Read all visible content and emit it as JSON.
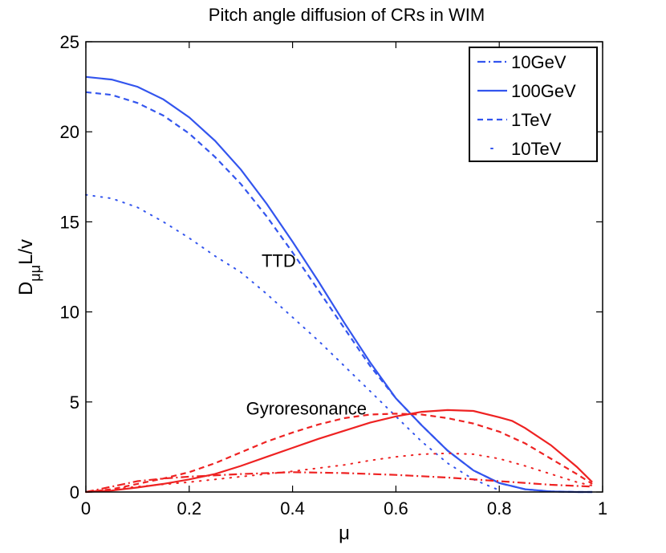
{
  "chart_data": {
    "type": "line",
    "title": "Pitch angle diffusion of CRs in WIM",
    "xlabel": "μ",
    "ylabel": {
      "main": "D",
      "subscript": "μμ",
      "suffix": "L/v"
    },
    "xlim": [
      0,
      1
    ],
    "ylim": [
      0,
      25
    ],
    "xticks": [
      0,
      0.2,
      0.4,
      0.6,
      0.8,
      1
    ],
    "yticks": [
      0,
      5,
      10,
      15,
      20,
      25
    ],
    "xtick_labels": [
      "0",
      "0.2",
      "0.4",
      "0.6",
      "0.8",
      "1"
    ],
    "ytick_labels": [
      "0",
      "5",
      "10",
      "15",
      "20",
      "25"
    ],
    "grid": false,
    "legend": {
      "position": "top-right",
      "entries": [
        {
          "label": "10GeV",
          "style": "dashdot"
        },
        {
          "label": "100GeV",
          "style": "solid"
        },
        {
          "label": "1TeV",
          "style": "dashed"
        },
        {
          "label": "10TeV",
          "style": "dotted"
        }
      ]
    },
    "annotations": [
      {
        "text": "TTD",
        "x": 0.34,
        "y": 12.5
      },
      {
        "text": "Gyroresonance",
        "x": 0.31,
        "y": 4.3
      }
    ],
    "colors": {
      "ttd": "#3355ee",
      "gyro": "#ee2222"
    },
    "series": [
      {
        "name": "TTD 100GeV",
        "group": "ttd",
        "style": "solid",
        "x": [
          0,
          0.05,
          0.1,
          0.15,
          0.2,
          0.25,
          0.3,
          0.35,
          0.4,
          0.45,
          0.5,
          0.55,
          0.6,
          0.65,
          0.7,
          0.75,
          0.8,
          0.85,
          0.9,
          0.95,
          0.98
        ],
        "y": [
          23.05,
          22.9,
          22.5,
          21.8,
          20.8,
          19.5,
          17.9,
          16.0,
          13.9,
          11.7,
          9.4,
          7.2,
          5.2,
          3.7,
          2.3,
          1.2,
          0.5,
          0.15,
          0.03,
          0.0,
          0.0
        ]
      },
      {
        "name": "TTD 1TeV",
        "group": "ttd",
        "style": "dashed",
        "x": [
          0,
          0.05,
          0.1,
          0.15,
          0.2,
          0.25,
          0.3,
          0.35,
          0.4,
          0.45,
          0.5,
          0.55,
          0.6,
          0.65,
          0.7,
          0.75,
          0.8,
          0.85,
          0.9,
          0.95,
          0.98
        ],
        "y": [
          22.2,
          22.05,
          21.6,
          20.9,
          19.9,
          18.6,
          17.1,
          15.3,
          13.3,
          11.2,
          9.1,
          7.0,
          5.2,
          3.7,
          2.3,
          1.2,
          0.5,
          0.15,
          0.03,
          0.0,
          0.0
        ]
      },
      {
        "name": "TTD 10TeV",
        "group": "ttd",
        "style": "dotted",
        "x": [
          0,
          0.05,
          0.1,
          0.15,
          0.2,
          0.25,
          0.3,
          0.35,
          0.4,
          0.45,
          0.5,
          0.55,
          0.6,
          0.65,
          0.7,
          0.75,
          0.8
        ],
        "y": [
          16.5,
          16.3,
          15.8,
          15.0,
          14.1,
          13.1,
          12.2,
          11.0,
          9.7,
          8.4,
          7.0,
          5.6,
          4.2,
          2.8,
          1.6,
          0.7,
          0.1
        ]
      },
      {
        "name": "Gyro 10GeV",
        "group": "gyro",
        "style": "dashdot",
        "x": [
          0,
          0.05,
          0.1,
          0.15,
          0.2,
          0.3,
          0.4,
          0.5,
          0.6,
          0.7,
          0.8,
          0.9,
          0.98
        ],
        "y": [
          0,
          0.3,
          0.6,
          0.75,
          0.85,
          1.0,
          1.1,
          1.05,
          0.95,
          0.8,
          0.6,
          0.4,
          0.3
        ]
      },
      {
        "name": "Gyro 100GeV",
        "group": "gyro",
        "style": "solid",
        "x": [
          0,
          0.05,
          0.1,
          0.15,
          0.2,
          0.25,
          0.3,
          0.35,
          0.4,
          0.45,
          0.5,
          0.55,
          0.6,
          0.65,
          0.7,
          0.75,
          0.8,
          0.825,
          0.85,
          0.9,
          0.95,
          0.98
        ],
        "y": [
          0,
          0.08,
          0.25,
          0.45,
          0.7,
          1.0,
          1.45,
          1.95,
          2.45,
          2.95,
          3.4,
          3.85,
          4.2,
          4.45,
          4.55,
          4.5,
          4.15,
          3.95,
          3.55,
          2.6,
          1.4,
          0.55
        ]
      },
      {
        "name": "Gyro 1TeV",
        "group": "gyro",
        "style": "dashed",
        "x": [
          0,
          0.05,
          0.1,
          0.15,
          0.2,
          0.25,
          0.3,
          0.35,
          0.4,
          0.45,
          0.5,
          0.55,
          0.6,
          0.65,
          0.7,
          0.75,
          0.8,
          0.85,
          0.9,
          0.95,
          0.98
        ],
        "y": [
          0,
          0.15,
          0.45,
          0.75,
          1.1,
          1.6,
          2.2,
          2.8,
          3.3,
          3.75,
          4.1,
          4.3,
          4.35,
          4.3,
          4.1,
          3.8,
          3.35,
          2.7,
          1.85,
          1.0,
          0.45
        ]
      },
      {
        "name": "Gyro 10TeV",
        "group": "gyro",
        "style": "dotted",
        "x": [
          0,
          0.1,
          0.2,
          0.3,
          0.4,
          0.5,
          0.55,
          0.6,
          0.65,
          0.7,
          0.75,
          0.8,
          0.85,
          0.9,
          0.95,
          0.98
        ],
        "y": [
          0,
          0.3,
          0.55,
          0.85,
          1.15,
          1.5,
          1.75,
          1.95,
          2.1,
          2.15,
          2.1,
          1.85,
          1.45,
          1.0,
          0.55,
          0.35
        ]
      }
    ]
  }
}
